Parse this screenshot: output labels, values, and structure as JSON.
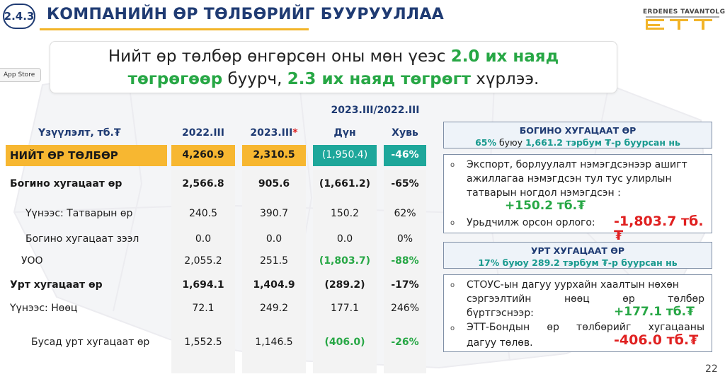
{
  "header": {
    "section_number": "2.4.3",
    "title": "КОМПАНИЙН ӨР ТӨЛБӨРИЙГ БУУРУУЛЛАА",
    "logo_text": "ERDENES TAVANTOLGOI",
    "logo_mark": "ETT"
  },
  "app_store_label": "App Store",
  "headline": {
    "part1": "Нийт өр төлбөр өнгөрсөн оны мөн үеэс ",
    "highlight1": "2.0 их наяд",
    "highlight1b": "төгрөгөөр",
    "part2": " буурч, ",
    "highlight2": "2.3 их наяд төгрөгт",
    "part3": " хүрлээ."
  },
  "table": {
    "period_compare": "2023.III/2022.III",
    "headers": {
      "indicator": "Үзүүлэлт, тб.₮",
      "col_2022": "2022.III",
      "col_2023": "2023.III",
      "col_2023_mark": "*",
      "diff": "Дүн",
      "pct": "Хувь"
    },
    "rows": [
      {
        "label": "НИЙТ ӨР ТӨЛБӨР",
        "v2022": "4,260.9",
        "v2023": "2,310.5",
        "diff": "(1,950.4)",
        "pct": "-46%"
      },
      {
        "label": "Богино хугацаат өр",
        "v2022": "2,566.8",
        "v2023": "905.6",
        "diff": "(1,661.2)",
        "pct": "-65%"
      },
      {
        "label": "Үүнээс: Татварын өр",
        "v2022": "240.5",
        "v2023": "390.7",
        "diff": "150.2",
        "pct": "62%"
      },
      {
        "label": "Богино хугацаат зээл",
        "v2022": "0.0",
        "v2023": "0.0",
        "diff": "0.0",
        "pct": "0%"
      },
      {
        "label": "УОО",
        "v2022": "2,055.2",
        "v2023": "251.5",
        "diff": "(1,803.7)",
        "pct": "-88%"
      },
      {
        "label": "Урт хугацаат өр",
        "v2022": "1,694.1",
        "v2023": "1,404.9",
        "diff": "(289.2)",
        "pct": "-17%"
      },
      {
        "label": "Үүнээс: Нөөц",
        "v2022": "72.1",
        "v2023": "249.2",
        "diff": "177.1",
        "pct": "246%"
      },
      {
        "label": "Бусад урт хугацаат өр",
        "v2022": "1,552.5",
        "v2023": "1,146.5",
        "diff": "(406.0)",
        "pct": "-26%"
      }
    ]
  },
  "short_term_panel": {
    "title": "БОГИНО ХУГАЦААТ ӨР",
    "subtitle_pct": "65%",
    "subtitle_mid": " буюу ",
    "subtitle_amt": "1,661.2 тэрбум ₮-р буурсан нь",
    "item1_line1": "Экспорт, борлуулалт нэмэгдсэнээр ашигт",
    "item1_line2": "ажиллагаа нэмэгдсэн тул тус улирлын",
    "item1_line3": "татварын ногдол нэмэгдсэн :",
    "item1_value": "+150.2 тб.₮",
    "item2_text": "Урьдчилж орсон орлого:",
    "item2_value": "-1,803.7 тб.₮"
  },
  "long_term_panel": {
    "title": "УРТ ХУГАЦААТ ӨР",
    "subtitle_pct": "17%",
    "subtitle_mid": " буюу ",
    "subtitle_amt": "289.2 тэрбум ₮-р буурсан нь",
    "item1_line1": "СТОУС-ын дагуу уурхайн хаалтын нөхөн",
    "item1_line2": "сэргээлтийн нөөц өр төлбөр",
    "item1_line3": "бүртгэснээр:",
    "item1_value": "+177.1 тб.₮",
    "item2_line1": "ЭТТ-Бондын өр төлбөрийг хугацааны",
    "item2_line2": "дагуу төлөв.",
    "item2_value": "-406.0 тб.₮"
  },
  "bullet": "o",
  "page_number": "22",
  "colors": {
    "navy": "#1f3b73",
    "gold": "#f7b731",
    "teal": "#1ea79b",
    "green": "#27a745",
    "red": "#e02020"
  }
}
